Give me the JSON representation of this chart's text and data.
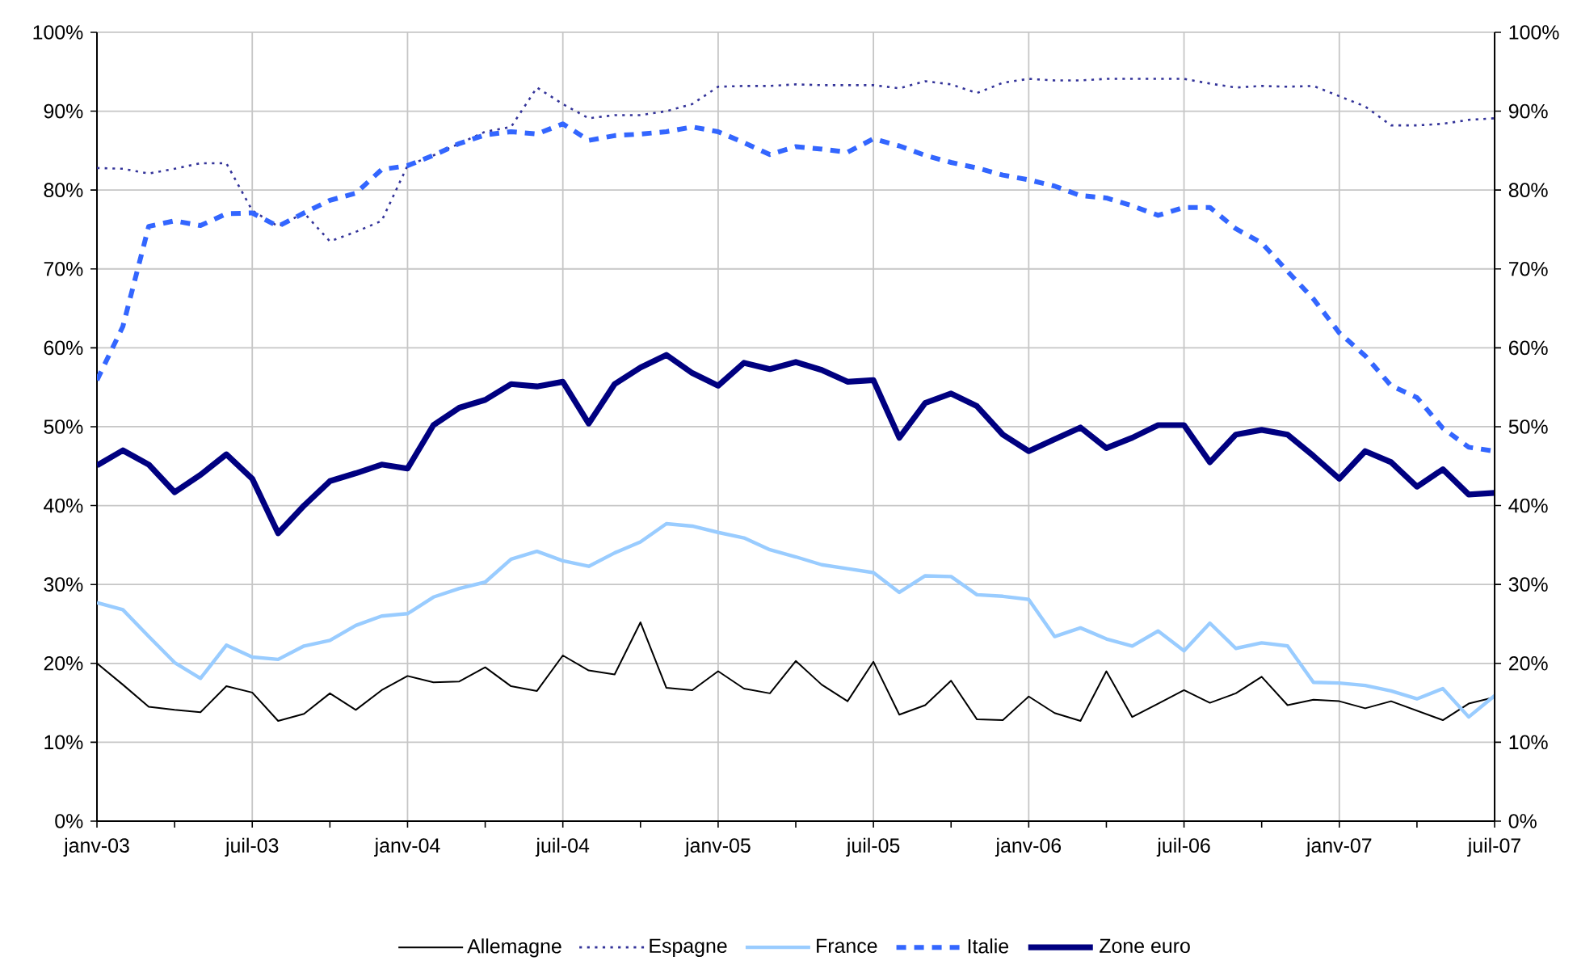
{
  "chart_data": {
    "type": "line",
    "x": [
      "2003-01",
      "2003-02",
      "2003-03",
      "2003-04",
      "2003-05",
      "2003-06",
      "2003-07",
      "2003-08",
      "2003-09",
      "2003-10",
      "2003-11",
      "2003-12",
      "2004-01",
      "2004-02",
      "2004-03",
      "2004-04",
      "2004-05",
      "2004-06",
      "2004-07",
      "2004-08",
      "2004-09",
      "2004-10",
      "2004-11",
      "2004-12",
      "2005-01",
      "2005-02",
      "2005-03",
      "2005-04",
      "2005-05",
      "2005-06",
      "2005-07",
      "2005-08",
      "2005-09",
      "2005-10",
      "2005-11",
      "2005-12",
      "2006-01",
      "2006-02",
      "2006-03",
      "2006-04",
      "2006-05",
      "2006-06",
      "2006-07",
      "2006-08",
      "2006-09",
      "2006-10",
      "2006-11",
      "2006-12",
      "2007-01",
      "2007-02",
      "2007-03",
      "2007-04",
      "2007-05",
      "2007-06",
      "2007-07"
    ],
    "series": [
      {
        "name": "Allemagne",
        "color": "#000000",
        "line_style": "solid",
        "values": [
          20.0,
          17.3,
          14.5,
          14.1,
          13.8,
          17.1,
          16.3,
          12.7,
          13.6,
          16.2,
          14.1,
          16.6,
          18.4,
          17.6,
          17.7,
          19.5,
          17.1,
          16.5,
          21.0,
          19.1,
          18.6,
          25.2,
          16.9,
          16.6,
          19.0,
          16.8,
          16.2,
          20.3,
          17.3,
          15.2,
          20.2,
          13.5,
          14.7,
          17.8,
          12.9,
          12.8,
          15.8,
          13.7,
          12.7,
          19.0,
          13.2,
          14.9,
          16.6,
          15.0,
          16.2,
          18.3,
          14.7,
          15.4,
          15.2,
          14.3,
          15.2,
          14.0,
          12.8,
          14.9,
          15.7
        ]
      },
      {
        "name": "Espagne",
        "color": "#333399",
        "line_style": "dotted",
        "values": [
          82.8,
          82.7,
          82.1,
          82.7,
          83.4,
          83.4,
          77.4,
          75.4,
          77.1,
          73.5,
          74.7,
          76.1,
          83.1,
          84.4,
          85.9,
          87.4,
          88.0,
          93.0,
          90.9,
          89.1,
          89.5,
          89.5,
          90.0,
          90.9,
          93.1,
          93.2,
          93.2,
          93.4,
          93.3,
          93.3,
          93.3,
          92.9,
          93.8,
          93.4,
          92.3,
          93.6,
          94.1,
          93.9,
          93.9,
          94.1,
          94.1,
          94.1,
          94.1,
          93.5,
          93.0,
          93.2,
          93.1,
          93.2,
          91.9,
          90.6,
          88.2,
          88.2,
          88.4,
          88.9,
          89.1
        ]
      },
      {
        "name": "France",
        "color": "#99ccff",
        "line_style": "solid",
        "values": [
          27.7,
          26.8,
          23.4,
          20.1,
          18.1,
          22.3,
          20.8,
          20.5,
          22.2,
          22.9,
          24.8,
          26.0,
          26.3,
          28.4,
          29.5,
          30.3,
          33.2,
          34.2,
          33.0,
          32.3,
          34.0,
          35.4,
          37.7,
          37.4,
          36.6,
          35.9,
          34.4,
          33.5,
          32.5,
          32.0,
          31.5,
          29.0,
          31.1,
          31.0,
          28.7,
          28.5,
          28.1,
          23.4,
          24.5,
          23.1,
          22.2,
          24.1,
          21.6,
          25.1,
          21.9,
          22.6,
          22.2,
          17.6,
          17.5,
          17.2,
          16.5,
          15.5,
          16.8,
          13.2,
          15.9
        ]
      },
      {
        "name": "Italie",
        "color": "#3366ff",
        "line_style": "dashed",
        "values": [
          55.9,
          62.7,
          75.4,
          76.1,
          75.5,
          77.0,
          77.1,
          75.4,
          77.1,
          78.7,
          79.6,
          82.6,
          83.1,
          84.4,
          85.9,
          87.0,
          87.4,
          87.1,
          88.4,
          86.3,
          86.9,
          87.1,
          87.4,
          88.0,
          87.4,
          86.0,
          84.5,
          85.5,
          85.2,
          84.8,
          86.5,
          85.6,
          84.4,
          83.5,
          82.8,
          81.9,
          81.3,
          80.5,
          79.3,
          79.0,
          78.0,
          76.8,
          77.8,
          77.8,
          75.1,
          73.3,
          69.7,
          66.2,
          61.9,
          59.0,
          55.2,
          53.7,
          49.8,
          47.4,
          46.9
        ]
      },
      {
        "name": "Zone euro",
        "color": "#000080",
        "line_style": "solid",
        "values": [
          45.1,
          47.0,
          45.2,
          41.7,
          43.9,
          46.5,
          43.4,
          36.5,
          40.0,
          43.1,
          44.1,
          45.2,
          44.7,
          50.2,
          52.4,
          53.4,
          55.4,
          55.1,
          55.7,
          50.4,
          55.4,
          57.5,
          59.1,
          56.8,
          55.2,
          58.1,
          57.3,
          58.2,
          57.2,
          55.7,
          55.9,
          48.6,
          53.0,
          54.2,
          52.6,
          49.0,
          46.9,
          48.4,
          49.9,
          47.3,
          48.6,
          50.2,
          50.2,
          45.5,
          49.0,
          49.6,
          49.0,
          46.3,
          43.4,
          46.9,
          45.5,
          42.4,
          44.6,
          41.4,
          41.6
        ]
      }
    ],
    "xlim": [
      "2003-01",
      "2007-07"
    ],
    "xticks": [
      {
        "value": "2003-01",
        "label": "janv-03"
      },
      {
        "value": "2003-04",
        "label": null
      },
      {
        "value": "2003-07",
        "label": "juil-03"
      },
      {
        "value": "2003-10",
        "label": null
      },
      {
        "value": "2004-01",
        "label": "janv-04"
      },
      {
        "value": "2004-04",
        "label": null
      },
      {
        "value": "2004-07",
        "label": "juil-04"
      },
      {
        "value": "2004-10",
        "label": null
      },
      {
        "value": "2005-01",
        "label": "janv-05"
      },
      {
        "value": "2005-04",
        "label": null
      },
      {
        "value": "2005-07",
        "label": "juil-05"
      },
      {
        "value": "2005-10",
        "label": null
      },
      {
        "value": "2006-01",
        "label": "janv-06"
      },
      {
        "value": "2006-04",
        "label": null
      },
      {
        "value": "2006-07",
        "label": "juil-06"
      },
      {
        "value": "2006-10",
        "label": null
      },
      {
        "value": "2007-01",
        "label": "janv-07"
      },
      {
        "value": "2007-04",
        "label": null
      },
      {
        "value": "2007-07",
        "label": "juil-07"
      }
    ],
    "ylim": [
      0,
      100
    ],
    "yticks": [
      {
        "value": 0,
        "label": "0%"
      },
      {
        "value": 10,
        "label": "10%"
      },
      {
        "value": 20,
        "label": "20%"
      },
      {
        "value": 30,
        "label": "30%"
      },
      {
        "value": 40,
        "label": "40%"
      },
      {
        "value": 50,
        "label": "50%"
      },
      {
        "value": 60,
        "label": "60%"
      },
      {
        "value": 70,
        "label": "70%"
      },
      {
        "value": 80,
        "label": "80%"
      },
      {
        "value": 90,
        "label": "90%"
      },
      {
        "value": 100,
        "label": "100%"
      }
    ],
    "y2lim": [
      0,
      100
    ],
    "y2ticks": [
      {
        "value": 0,
        "label": "0%"
      },
      {
        "value": 10,
        "label": "10%"
      },
      {
        "value": 20,
        "label": "20%"
      },
      {
        "value": 30,
        "label": "30%"
      },
      {
        "value": 40,
        "label": "40%"
      },
      {
        "value": 50,
        "label": "50%"
      },
      {
        "value": 60,
        "label": "60%"
      },
      {
        "value": 70,
        "label": "70%"
      },
      {
        "value": 80,
        "label": "80%"
      },
      {
        "value": 90,
        "label": "90%"
      },
      {
        "value": 100,
        "label": "100%"
      }
    ],
    "grid": true,
    "legend": "bottom",
    "marker": "none"
  }
}
